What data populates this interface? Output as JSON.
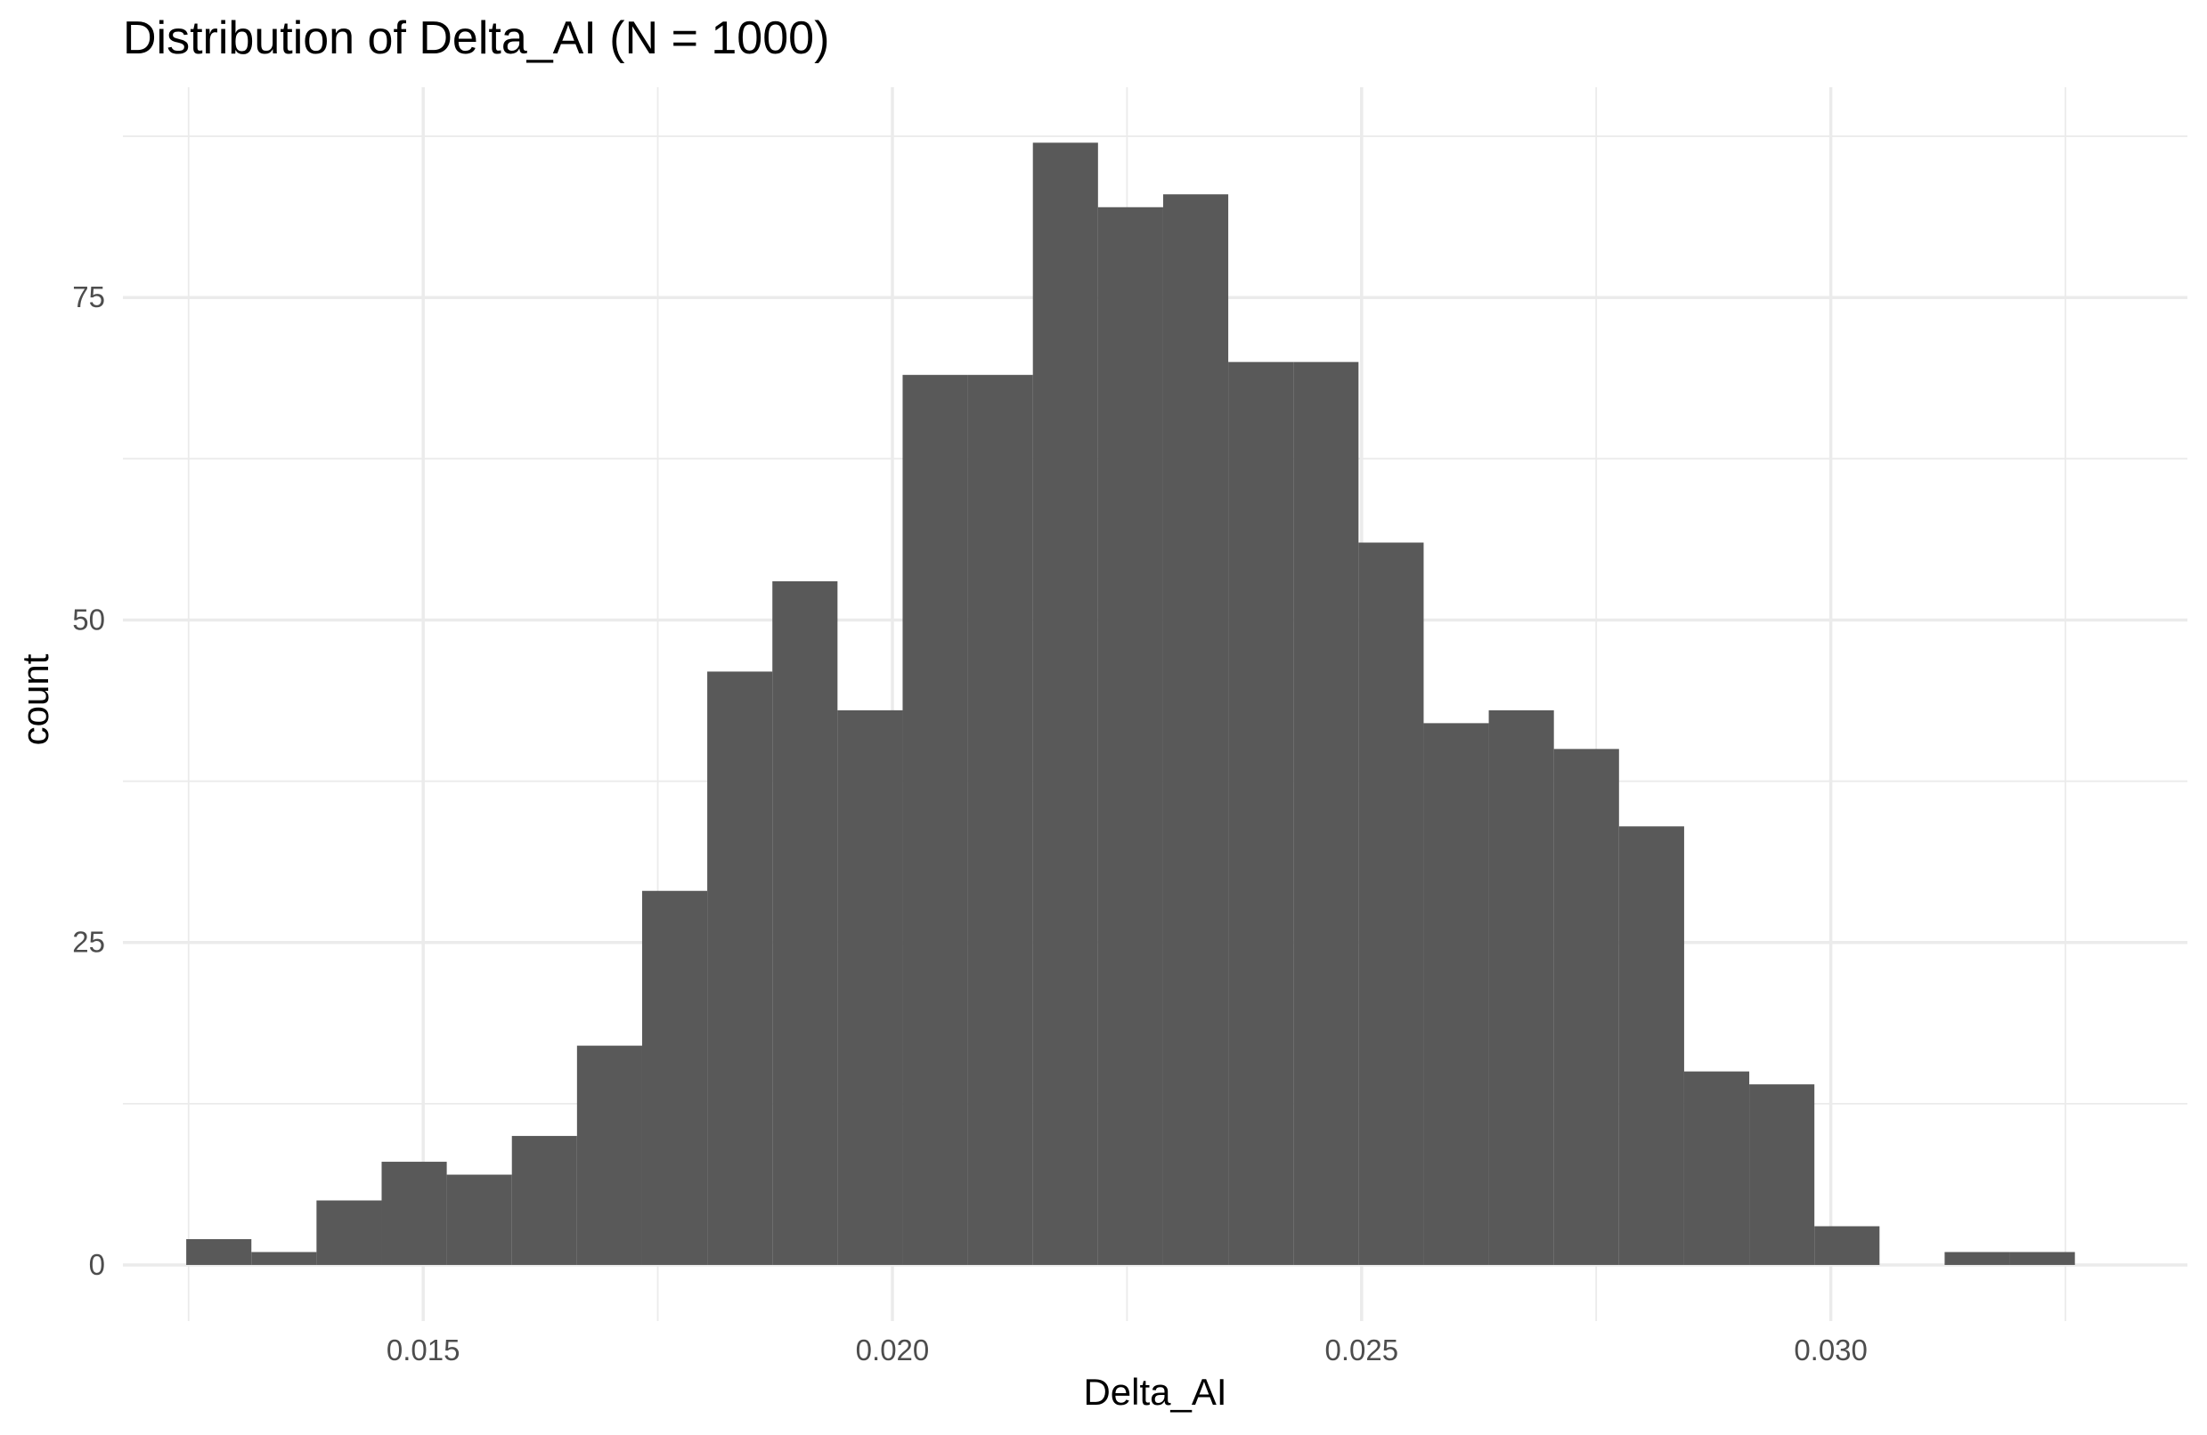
{
  "chart_data": {
    "type": "bar",
    "subtype": "histogram",
    "title": "Distribution of Delta_AI (N = 1000)",
    "xlabel": "Delta_AI",
    "ylabel": "count",
    "bar_color": "#595959",
    "grid_color": "#ebebeb",
    "background": "#ffffff",
    "grid": true,
    "legend": "none",
    "xlim": [
      0.0118,
      0.0338
    ],
    "ylim": [
      -4.35,
      91.3
    ],
    "x_ticks": [
      0.015,
      0.02,
      0.025,
      0.03
    ],
    "x_tick_labels": [
      "0.015",
      "0.020",
      "0.025",
      "0.030"
    ],
    "x_minor_ticks": [
      0.0125,
      0.0175,
      0.0225,
      0.0275,
      0.0325
    ],
    "y_ticks": [
      0,
      25,
      50,
      75
    ],
    "y_tick_labels": [
      "0",
      "25",
      "50",
      "75"
    ],
    "y_minor_ticks": [
      12.5,
      37.5,
      62.5,
      87.5
    ],
    "bin_width": 0.000694,
    "bin_centers": [
      0.012822,
      0.013516,
      0.01421,
      0.014904,
      0.015598,
      0.016292,
      0.016986,
      0.01768,
      0.018374,
      0.019068,
      0.019762,
      0.020456,
      0.02115,
      0.021844,
      0.022538,
      0.023232,
      0.023926,
      0.02462,
      0.025314,
      0.026008,
      0.026702,
      0.027396,
      0.02809,
      0.028784,
      0.029478,
      0.030172,
      0.030866,
      0.03156,
      0.032254
    ],
    "counts": [
      2,
      1,
      5,
      8,
      7,
      10,
      17,
      29,
      46,
      53,
      43,
      69,
      69,
      87,
      82,
      83,
      70,
      70,
      56,
      42,
      43,
      40,
      34,
      15,
      14,
      3,
      0,
      1,
      1
    ]
  }
}
